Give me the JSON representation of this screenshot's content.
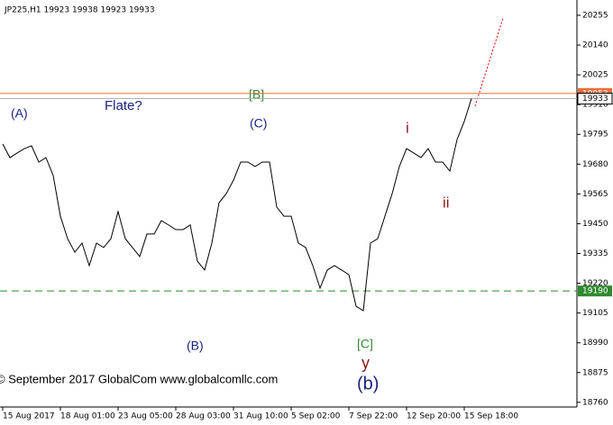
{
  "chart_data": {
    "type": "line",
    "title": "JP225,H1  19923 19938 19923 19933",
    "footer": "© September 2017 GlobalCom www.globalcomllc.com",
    "categories": [
      "15 Aug 2017",
      null,
      null,
      null,
      null,
      null,
      null,
      null,
      "18 Aug 01:00",
      null,
      null,
      null,
      null,
      null,
      null,
      null,
      "23 Aug 05:00",
      null,
      null,
      null,
      null,
      null,
      null,
      null,
      "28 Aug 03:00",
      null,
      null,
      null,
      null,
      null,
      null,
      null,
      "31 Aug 10:00",
      null,
      null,
      null,
      null,
      null,
      null,
      null,
      "5 Sep 02:00",
      null,
      null,
      null,
      null,
      null,
      null,
      null,
      "7 Sep 22:00",
      null,
      null,
      null,
      null,
      null,
      null,
      null,
      "12 Sep 20:00",
      null,
      null,
      null,
      null,
      null,
      null,
      null,
      "15 Sep 18:00",
      null
    ],
    "series": [
      {
        "name": "JP225",
        "color": "#000000",
        "values": [
          19758,
          19705,
          19723,
          19740,
          19751,
          19688,
          19705,
          19636,
          19479,
          19392,
          19340,
          19375,
          19288,
          19375,
          19358,
          19392,
          19497,
          19392,
          19358,
          19323,
          19410,
          19410,
          19462,
          19445,
          19427,
          19427,
          19445,
          19305,
          19271,
          19375,
          19531,
          19566,
          19618,
          19688,
          19688,
          19671,
          19688,
          19688,
          19514,
          19479,
          19479,
          19375,
          19358,
          19288,
          19201,
          19271,
          19288,
          19271,
          19253,
          19131,
          19114,
          19375,
          19392,
          19479,
          19566,
          19671,
          19740,
          19723,
          19705,
          19740,
          19688,
          19688,
          19653,
          19775,
          19845,
          19933
        ]
      }
    ],
    "ylim": [
      18742,
      20314
    ],
    "yticks": [
      18760,
      18875,
      18990,
      19105,
      19220,
      19335,
      19450,
      19565,
      19680,
      19795,
      19910,
      20025,
      20140,
      20255
    ],
    "levels": [
      {
        "value": 19953,
        "color": "#e8703a"
      },
      {
        "value": 19933,
        "color": "#b0b0b0"
      },
      {
        "value": 19190,
        "color": "#2e8b2e"
      }
    ],
    "annotations": [
      "(A)",
      "Flate?",
      "[B]",
      "(C)",
      "(B)",
      "i",
      "ii",
      "[C]",
      "y",
      "(b)"
    ]
  }
}
